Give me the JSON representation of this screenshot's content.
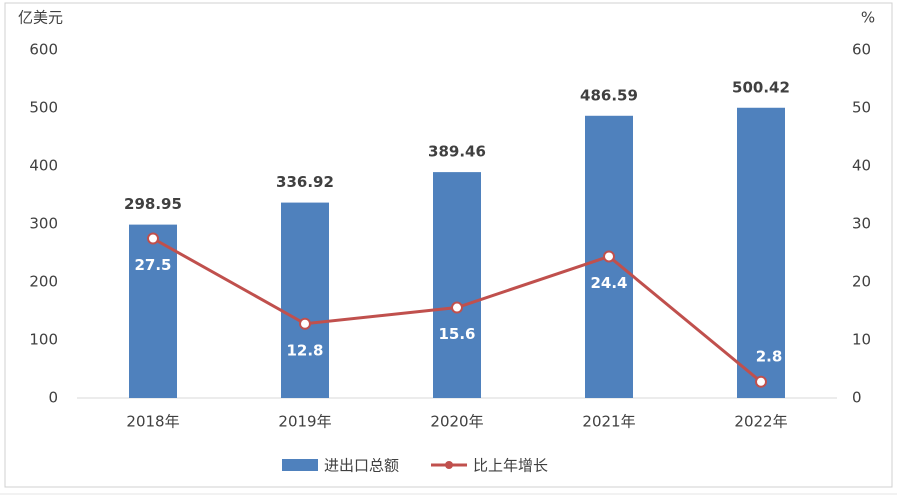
{
  "chart_data": {
    "type": "bar-line",
    "y_unit": "亿美元",
    "y2_unit": "%",
    "categories": [
      "2018年",
      "2019年",
      "2020年",
      "2021年",
      "2022年"
    ],
    "series": [
      {
        "name": "进出口总额",
        "type": "bar",
        "color": "#4f81bd",
        "values": [
          298.95,
          336.92,
          389.46,
          486.59,
          500.42
        ]
      },
      {
        "name": "比上年增长",
        "type": "line",
        "axis": "y2",
        "color": "#c0504d",
        "values": [
          27.5,
          12.8,
          15.6,
          24.4,
          2.8
        ]
      }
    ],
    "ylim": [
      0,
      600
    ],
    "yticks": [
      0,
      100,
      200,
      300,
      400,
      500,
      600
    ],
    "y2lim": [
      0,
      60
    ],
    "y2ticks": [
      0,
      10,
      20,
      30,
      40,
      50,
      60
    ],
    "grid": false,
    "legend": "bottom"
  }
}
